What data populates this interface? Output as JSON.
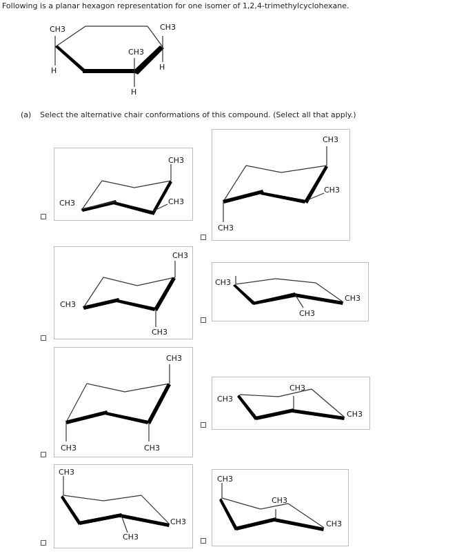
{
  "question": {
    "intro": "Following is a planar hexagon representation for one isomer of 1,2,4-trimethylcyclohexane.",
    "part_marker": "(a)",
    "prompt": "Select the alternative chair conformations of this compound. (Select all that apply.)"
  },
  "hexagon": {
    "labels": {
      "ch3_left": "CH3",
      "ch3_right": "CH3",
      "ch3_center": "CH3",
      "h_left": "H",
      "h_right": "H",
      "h_bottom": "H"
    }
  },
  "options": [
    {
      "id": "A",
      "checked": false,
      "labels": [
        "CH3",
        "CH3",
        "CH3"
      ]
    },
    {
      "id": "B",
      "checked": false,
      "labels": [
        "CH3",
        "CH3",
        "CH3"
      ]
    },
    {
      "id": "C",
      "checked": false,
      "labels": [
        "CH3",
        "CH3",
        "CH3"
      ]
    },
    {
      "id": "D",
      "checked": false,
      "labels": [
        "CH3",
        "CH3",
        "CH3"
      ]
    },
    {
      "id": "E",
      "checked": false,
      "labels": [
        "CH3",
        "CH3",
        "CH3"
      ]
    },
    {
      "id": "F",
      "checked": false,
      "labels": [
        "CH3",
        "CH3",
        "CH3"
      ]
    },
    {
      "id": "G",
      "checked": false,
      "labels": [
        "CH3",
        "CH3",
        "CH3"
      ]
    },
    {
      "id": "H",
      "checked": false,
      "labels": [
        "CH3",
        "CH3",
        "CH3"
      ]
    }
  ]
}
